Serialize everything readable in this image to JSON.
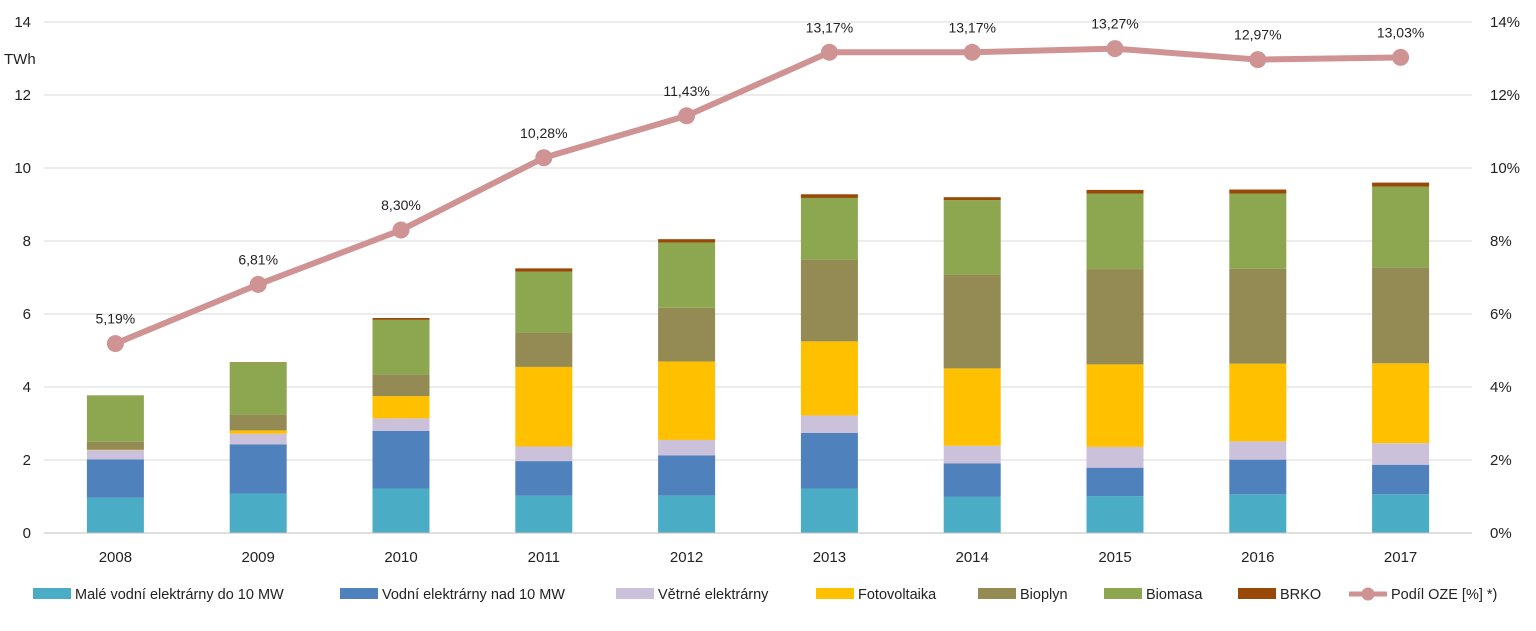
{
  "chart_data": {
    "type": "bar",
    "stacked": true,
    "title": "",
    "xlabel": "",
    "ylabel": "TWh",
    "ylim": [
      0,
      14
    ],
    "y_ticks": [
      "0",
      "2",
      "4",
      "6",
      "8",
      "10",
      "12",
      "14"
    ],
    "y2lim": [
      0,
      14
    ],
    "y2_ticks": [
      "0%",
      "2%",
      "4%",
      "6%",
      "8%",
      "10%",
      "12%",
      "14%"
    ],
    "grid": true,
    "legend_position": "bottom",
    "categories": [
      "2008",
      "2009",
      "2010",
      "2011",
      "2012",
      "2013",
      "2014",
      "2015",
      "2016",
      "2017"
    ],
    "series": [
      {
        "name": "Malé vodní elektrárny do 10 MW",
        "color": "#4BACC6",
        "values": [
          0.97,
          1.08,
          1.22,
          1.02,
          1.03,
          1.22,
          0.99,
          1.01,
          1.06,
          1.06
        ]
      },
      {
        "name": "Vodní elektrárny nad 10 MW",
        "color": "#4F81BD",
        "values": [
          1.05,
          1.35,
          1.58,
          0.95,
          1.1,
          1.52,
          0.92,
          0.78,
          0.95,
          0.81
        ]
      },
      {
        "name": "Větrné elektrárny",
        "color": "#CCC1DA",
        "values": [
          0.25,
          0.29,
          0.34,
          0.4,
          0.42,
          0.48,
          0.48,
          0.57,
          0.5,
          0.59
        ]
      },
      {
        "name": "Fotovoltaika",
        "color": "#FFC000",
        "values": [
          0.01,
          0.09,
          0.61,
          2.18,
          2.15,
          2.03,
          2.12,
          2.26,
          2.13,
          2.19
        ]
      },
      {
        "name": "Bioplyn",
        "color": "#948A54",
        "values": [
          0.22,
          0.44,
          0.6,
          0.93,
          1.47,
          2.24,
          2.57,
          2.61,
          2.6,
          2.63
        ]
      },
      {
        "name": "Biomasa",
        "color": "#8DA750",
        "values": [
          1.26,
          1.42,
          1.49,
          1.68,
          1.79,
          1.69,
          2.04,
          2.07,
          2.06,
          2.21
        ]
      },
      {
        "name": "BRKO",
        "color": "#984807",
        "values": [
          0.01,
          0.01,
          0.05,
          0.09,
          0.09,
          0.1,
          0.08,
          0.1,
          0.11,
          0.11
        ]
      }
    ],
    "line_series": {
      "name": "Podíl OZE [%] *)",
      "color": "#D09393",
      "axis": "right",
      "values": [
        5.19,
        6.81,
        8.3,
        10.28,
        11.43,
        13.17,
        13.17,
        13.27,
        12.97,
        13.03
      ],
      "labels": [
        "5,19%",
        "6,81%",
        "8,30%",
        "10,28%",
        "11,43%",
        "13,17%",
        "13,17%",
        "13,27%",
        "12,97%",
        "13,03%"
      ]
    }
  }
}
